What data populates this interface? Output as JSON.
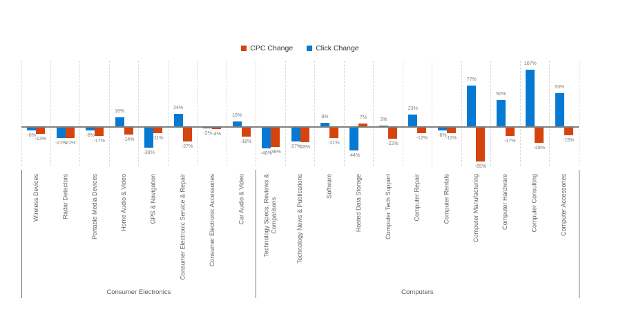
{
  "legend": {
    "items": [
      {
        "label": "CPC Change",
        "color": "#D6440D",
        "series_key": "cpc_change"
      },
      {
        "label": "Click Change",
        "color": "#0679D2",
        "series_key": "click_change"
      }
    ]
  },
  "colors": {
    "click_change_bar": "#0679D2",
    "cpc_change_bar": "#D6440D",
    "axis_line": "#7f7f7f",
    "gridline": "#d9d9d9",
    "data_label": "#7a7a7a",
    "category_label": "#666666",
    "group_label": "#5a5a5a",
    "background": "#ffffff"
  },
  "chart_data": {
    "type": "bar",
    "title": "",
    "unit": "%",
    "legend_position": "top-center",
    "grid": "vertical dashed separators between categories",
    "baseline": 0,
    "ylim": [
      -80,
      125
    ],
    "data_label_format": "{value}%",
    "series": [
      {
        "name": "Click Change",
        "key": "click_change",
        "color": "#0679D2",
        "bar_position": "left"
      },
      {
        "name": "CPC Change",
        "key": "cpc_change",
        "color": "#D6440D",
        "bar_position": "right"
      }
    ],
    "groups": [
      {
        "name": "Consumer Electronics",
        "categories": [
          "Wireless Devices",
          "Radar Detectors",
          "Portable Media Devices",
          "Home Audio & Video",
          "GPS & Navigation",
          "Consumer Electronic Service & Repair",
          "Consumer Electronic Accessories",
          "Car Audio & Video"
        ],
        "click_change": [
          -6,
          -21,
          -6,
          18,
          -39,
          24,
          -2,
          10
        ],
        "cpc_change": [
          -13,
          -21,
          -17,
          -14,
          -11,
          -27,
          -4,
          -18
        ]
      },
      {
        "name": "Computers",
        "categories": [
          "Technology Specs, Reviews &\nComparisons",
          "Technology News & Publications",
          "Software",
          "Hosted Data Storage",
          "Computer Tech Support",
          "Computer Repair",
          "Computer Rentals",
          "Computer Manufacturing",
          "Computer Hardware",
          "Computer Consulting",
          "Computer Accessories"
        ],
        "click_change": [
          -40,
          -27,
          8,
          -44,
          3,
          23,
          -6,
          77,
          50,
          107,
          63
        ],
        "cpc_change": [
          -38,
          -28,
          -21,
          7,
          -22,
          -12,
          -11,
          -65,
          -17,
          -29,
          -15
        ]
      }
    ]
  }
}
